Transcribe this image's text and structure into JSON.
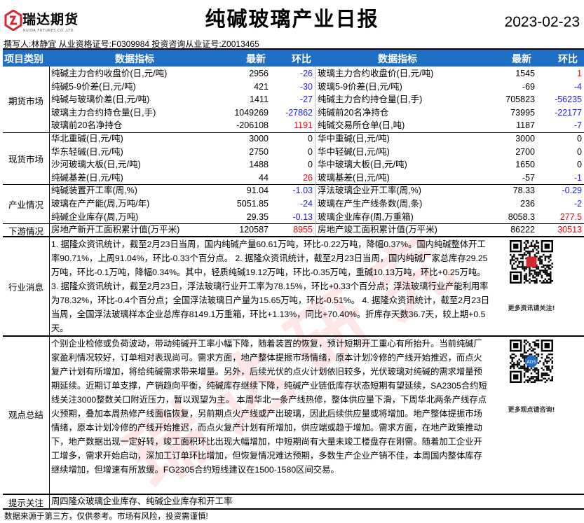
{
  "header": {
    "logo_cn": "瑞达期货",
    "logo_en": "RUIDA FUTURES CO.,LTD.",
    "title": "纯碱玻璃产业日报",
    "date": "2023-02-23",
    "author": "撰写人:林静宜 从业资格证号:F0309984 投资咨询从业证号:Z0013465"
  },
  "table": {
    "columns": {
      "category": "项目类别",
      "indicator": "数据指标",
      "latest": "最新",
      "change": "环比",
      "indicator2": "数据指标",
      "latest2": "最新",
      "change2": "环比"
    },
    "sections": [
      {
        "category": "期货市场",
        "rows": [
          [
            "纯碱主力合约收盘价(日,元/吨)",
            "2956",
            "-26",
            "玻璃主力合约收盘价(日,元/吨)",
            "1545",
            "1"
          ],
          [
            "纯碱5-9价差(日,元/吨)",
            "421",
            "-30",
            "玻璃5-9价差(日,元/吨)",
            "-69",
            "-4"
          ],
          [
            "纯碱与玻璃价差(日,元/吨)",
            "1411",
            "-27",
            "纯碱主力合约持仓量(日,手)",
            "705823",
            "-56235"
          ],
          [
            "玻璃主力合约持仓量(日,手)",
            "1049269",
            "-27862",
            "纯碱前20名净持仓",
            "73995",
            "-22177"
          ],
          [
            "玻璃前20名净持仓",
            "-206108",
            "1191",
            "纯碱交易所仓单(日,吨)",
            "1187",
            "-7"
          ]
        ]
      },
      {
        "category": "现货市场",
        "rows": [
          [
            "华北重碱(日,元/吨)",
            "3000",
            "0",
            "华中重碱(日,元/吨)",
            "3000",
            "0"
          ],
          [
            "华东轻碱(日,元/吨)",
            "2750",
            "0",
            "华中轻碱(日,元/吨)",
            "2700",
            "0"
          ],
          [
            "沙河玻璃大板(日,元/吨)",
            "1488",
            "0",
            "华中玻璃大板(日,元/吨)",
            "1650",
            "0"
          ],
          [
            "纯碱基差(日,元/吨)",
            "44",
            "26",
            "玻璃基差(日,元/吨)",
            "-57",
            "-1"
          ]
        ]
      },
      {
        "category": "产业情况",
        "rows": [
          [
            "纯碱装置开工率(周,%)",
            "91.04",
            "-1.03",
            "浮法玻璃企业开工率(周,%)",
            "78.33",
            "-0.29"
          ],
          [
            "玻璃在产产能(周,万吨/年)",
            "5051.85",
            "-24",
            "玻璃在产生产线条数(周,条)",
            "236",
            "-2"
          ],
          [
            "纯碱企业库存(周,万吨)",
            "29.35",
            "-0.13",
            "玻璃企业库存(周,万重箱)",
            "8058.3",
            "277.5"
          ]
        ]
      },
      {
        "category": "下游情况",
        "rows": [
          [
            "房地产新开工面积累计值(万平米)",
            "120587",
            "8955",
            "房地产竣工面积累计值(万平米)",
            "86222",
            "30513"
          ]
        ]
      }
    ]
  },
  "news": {
    "category": "行业消息",
    "text": "1. 据隆众资讯统计，截至2月23日当周，国内纯碱产量60.61万吨，环比-0.22万吨，降幅0.37%。国内纯碱整体开工率90.71%，上周91.04%，环比-0.33个百分点。 2. 据隆众资讯统计，截至2月23日当周，国内纯碱厂家总库存29.25万吨，环比-0.1万吨，降幅0.34%。其中，轻质纯碱19.12万吨，环比-0.35万吨，重碱10.13万吨，环比+0.25万吨。 3. 据隆众资讯统计，截至2月23日，浮法玻璃行业开工率为78.15%，环比+0.33个百分点；浮法玻璃行业产能利用率为78.32%，环比-0.4个百分点；全国浮法玻璃日产量为15.65万吨，环比-0.51%。 4. 据隆众资讯统计，截至2月23日当周，全国浮法玻璃样本企业总库存8149.1万重箱，环比+1.13%，同比+70.40%。折库存天数36.7天，较上期+0.5天。",
    "qr_caption": "更多资讯请关注!"
  },
  "views": {
    "category": "观点总结",
    "text": "个别企业检修或负荷波动，带动纯碱开工率小幅下降，随着装置的恢复，预计短期开工重心有所抬升。当前纯碱厂家盈利情况较好，订单相对表现尚可。需求方面，地产整体提振市场情绪，原本计划冷修的产线开始推迟，而点火复产计划有所增加，将给纯碱需求带来增量。另外，后续光伏的点火计划依旧较多，光伏玻璃对纯碱的需求增量预期延续。近期订单支撑，产销趋向平衡，纯碱库存继续下降，纯碱产业链低库存状态短期有望延续，SA2305合约短线关注3000整数关口附近压力，暂以观望为主。 本周华北一条产线热修，整体供应量下滑，下周华北两条产线存点火预期，叠加本周热修产线面临恢复，另前期点火产线或产出玻璃，因此后续供应量或将增加。地产整体提振市场情绪，原本计划冷修的产线开始推迟，而点火复产计划有所增加，供应端或趋于增加。需求方面，在地产政策推动下，地产数据出现一定好转，竣工面积环比出现大幅增加，中短期尚有大量未竣工楼盘存在刚需。随着加工企业开工增多，需求开始启动，深加工订单环比增加，但恢复情况难达预期，多数生产企业产销不佳，本周国内整体库存继续增加，但增速有所放缓。FG2305合约短线建议在1500-1580区间交易。",
    "qr_caption": "更多观点请咨询!",
    "qr_badge": "ADS"
  },
  "tips": {
    "category": "提示关注",
    "text": "周四隆众玻璃企业库存、纯碱企业库存和开工率"
  },
  "footer": "数据来源于第三方，仅供参考。市场有风险，投资需谨慎!",
  "watermark": "瑞达研究",
  "colors": {
    "header_bg": "#1f6fc4",
    "negative": "#1a1aff",
    "positive": "#ff0000",
    "logo_red": "#d7282f"
  }
}
